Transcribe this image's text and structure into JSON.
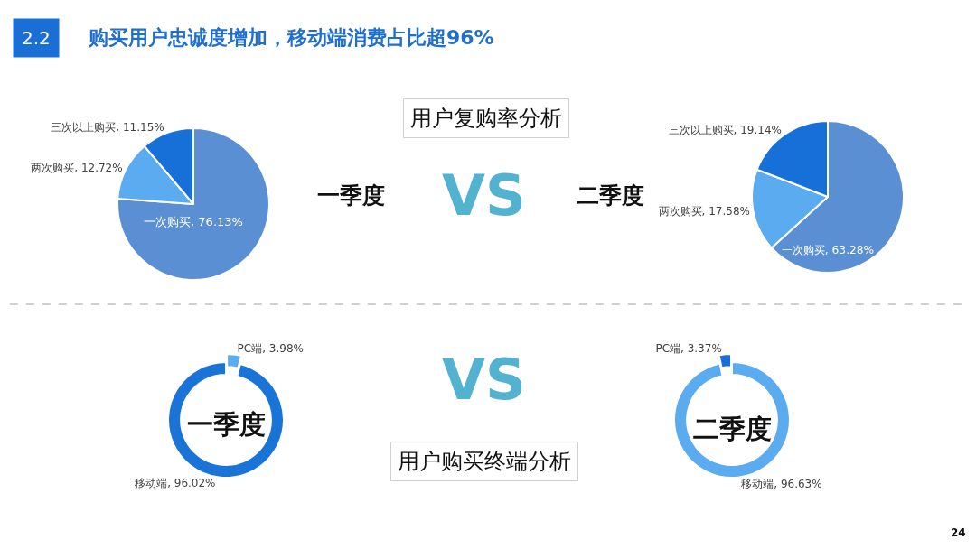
{
  "chart_data": [
    {
      "type": "pie",
      "title": "购买用户忠诚度增加，移动端消费占比超96%",
      "subtitle": "用户复购率分析",
      "categories": [
        "一次购买",
        "两次购买",
        "三次以上购买"
      ],
      "values": [
        76.13,
        12.72,
        11.15
      ],
      "value_labels": [
        "76.13%",
        "12.72%",
        "11.15%"
      ],
      "colors": [
        "#5b8fd4",
        "#5aabf0",
        "#1670d8"
      ],
      "annotations": [
        "2.2",
        "一季度",
        "VS"
      ]
    },
    {
      "type": "pie",
      "categories": [
        "一次购买",
        "两次购买",
        "三次以上购买"
      ],
      "values": [
        63.28,
        17.58,
        19.14
      ],
      "value_labels": [
        "63.28%",
        "17.58%",
        "19.14%"
      ],
      "colors": [
        "#5b8fd4",
        "#5aabf0",
        "#1670d8"
      ],
      "annotations": [
        "二季度"
      ]
    },
    {
      "type": "donut",
      "title": "用户购买终端分析",
      "categories": [
        "PC端",
        "移动端"
      ],
      "values": [
        3.98,
        96.02
      ],
      "value_labels": [
        "3.98%",
        "96.02%"
      ],
      "colors": [
        "#5aabf0",
        "#1a74d8"
      ],
      "annotations": [
        "一季度",
        "VS"
      ]
    },
    {
      "type": "donut",
      "categories": [
        "移动端",
        "PC端"
      ],
      "values": [
        96.63,
        3.37
      ],
      "value_labels": [
        "96.63%",
        "3.37%"
      ],
      "colors": [
        "#5aabf0",
        "#1a6fd6"
      ],
      "annotations": [
        "二季度",
        "24"
      ]
    }
  ]
}
